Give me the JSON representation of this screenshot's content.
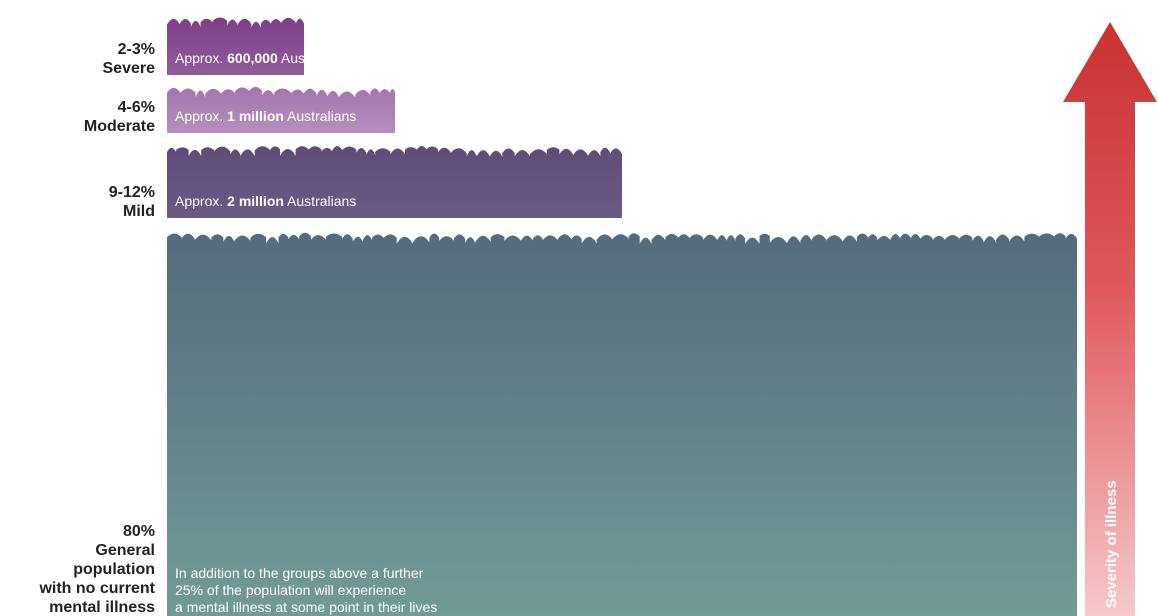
{
  "chart_data": {
    "type": "bar",
    "orientation": "horizontal",
    "arrow_label": "Severity of illness",
    "arrow_color": "#d84a4a",
    "tiers": [
      {
        "percent": "2-3%",
        "name": "Severe",
        "note_prefix": "Approx. ",
        "note_bold": "600,000",
        "note_suffix": " Australians",
        "value": 600000,
        "color_top": "#7b3f86",
        "color_bottom": "#935c9c"
      },
      {
        "percent": "4-6%",
        "name": "Moderate",
        "note_prefix": "Approx. ",
        "note_bold": "1 million",
        "note_suffix": " Australians",
        "value": 1000000,
        "color_top": "#a375af",
        "color_bottom": "#b58fbd"
      },
      {
        "percent": "9-12%",
        "name": "Mild",
        "note_prefix": "Approx. ",
        "note_bold": "2 million",
        "note_suffix": " Australians",
        "value": 2000000,
        "color_top": "#5f4c78",
        "color_bottom": "#6b5a86"
      },
      {
        "percent": "80%",
        "name_lines": [
          "General",
          "population",
          "with no current",
          "mental illness"
        ],
        "note_lines": [
          "In addition to the groups above a further",
          "25% of the population will experience",
          "a mental illness at some point in their lives"
        ],
        "value": 4000000,
        "color_top": "#556b7e",
        "color_bottom": "#719b97"
      }
    ]
  }
}
